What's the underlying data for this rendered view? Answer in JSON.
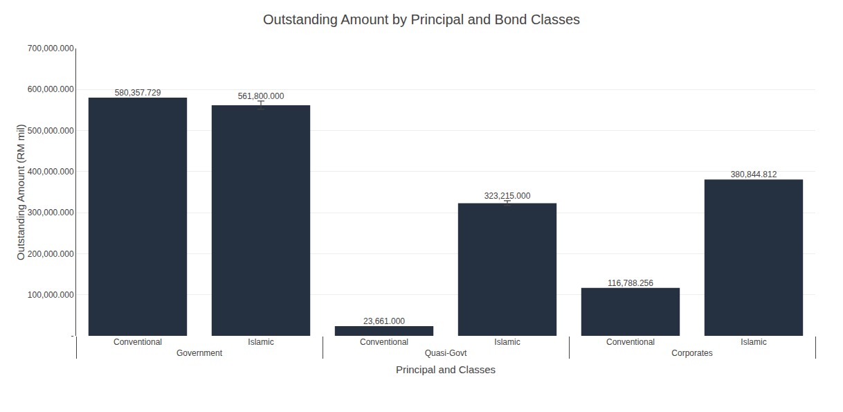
{
  "chart_data": {
    "type": "bar",
    "title": "Outstanding Amount by Principal and Bond Classes",
    "xlabel": "Principal and Classes",
    "ylabel": "Outstanding Amount (RM mil)",
    "categories": [
      [
        "Government",
        "Conventional"
      ],
      [
        "Government",
        "Islamic"
      ],
      [
        "Quasi-Govt",
        "Conventional"
      ],
      [
        "Quasi-Govt",
        "Islamic"
      ],
      [
        "Corporates",
        "Conventional"
      ],
      [
        "Corporates",
        "Islamic"
      ]
    ],
    "values": [
      580357.729,
      561800.0,
      23661.0,
      323215.0,
      116788.256,
      380844.812
    ],
    "value_labels": [
      "580,357.729",
      "561,800.000",
      "23,661.000",
      "323,215.000",
      "116,788.256",
      "380,844.812"
    ],
    "errors": [
      null,
      10112.4,
      null,
      5817.87,
      null,
      null
    ],
    "color": "#253040",
    "data_labels": true,
    "ylim": [
      0,
      700000
    ],
    "yticks": [
      {
        "value": 0,
        "label": "-"
      },
      {
        "value": 100000,
        "label": "100,000.000"
      },
      {
        "value": 200000,
        "label": "200,000.000"
      },
      {
        "value": 300000,
        "label": "300,000.000"
      },
      {
        "value": 400000,
        "label": "400,000.000"
      },
      {
        "value": 500000,
        "label": "500,000.000"
      },
      {
        "value": 600000,
        "label": "600,000.000"
      },
      {
        "value": 700000,
        "label": "700,000.000"
      }
    ],
    "grid": true
  }
}
